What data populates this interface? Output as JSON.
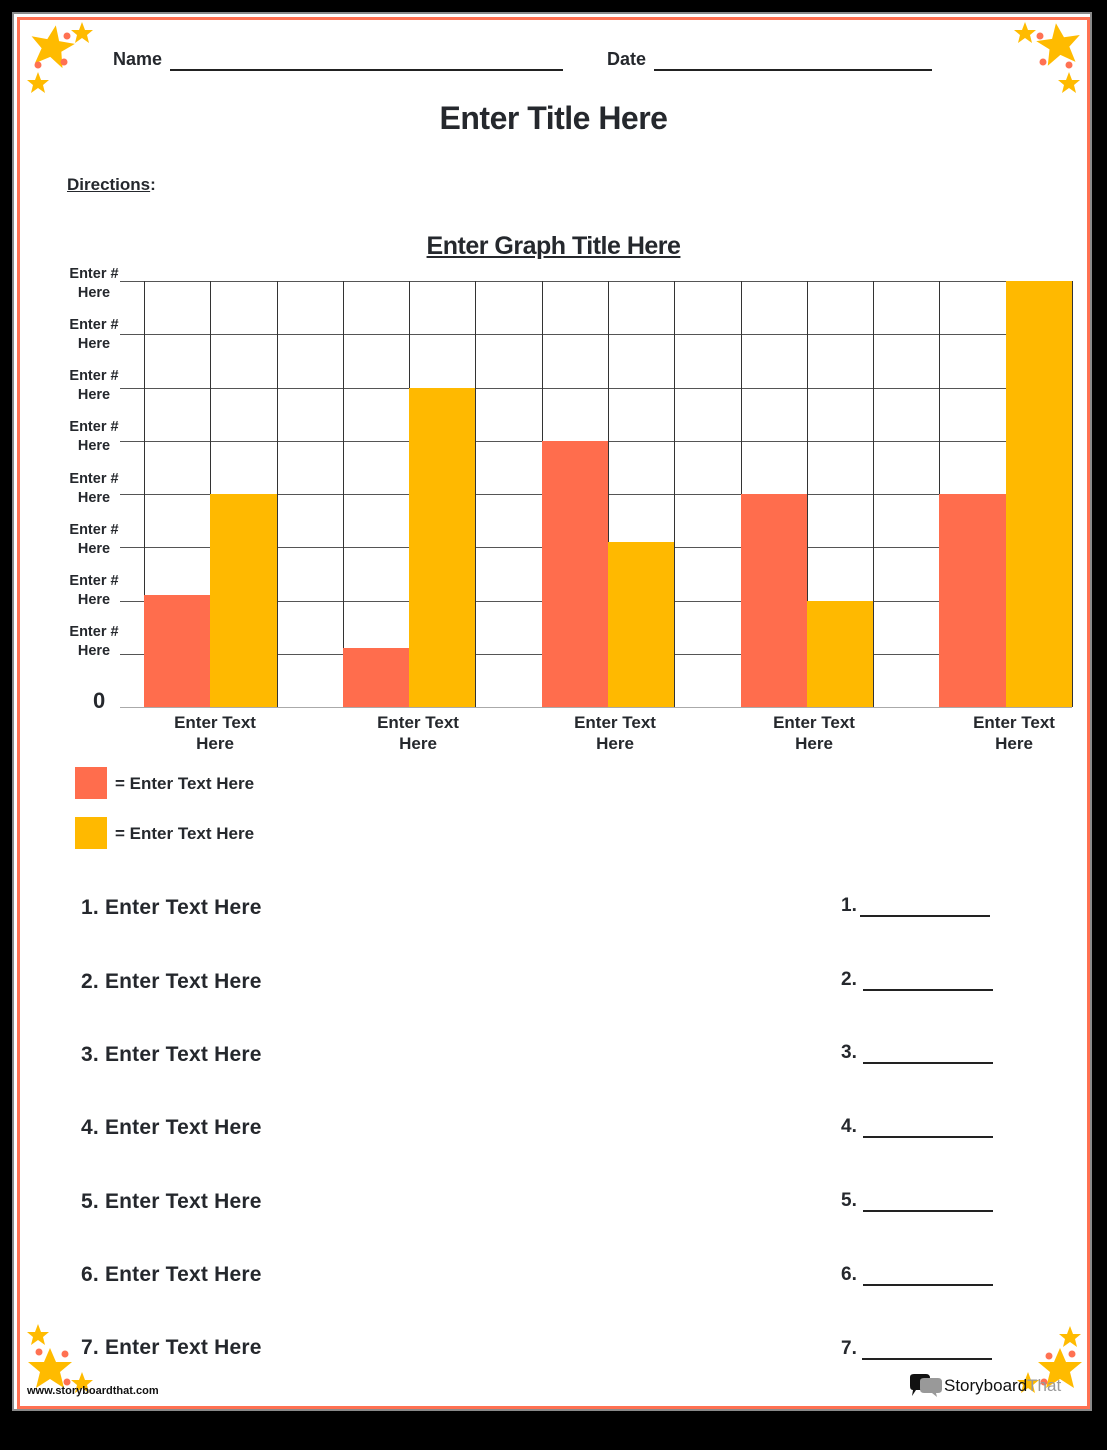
{
  "header": {
    "name_label": "Name",
    "date_label": "Date"
  },
  "title": "Enter Title Here",
  "directions_label": "Directions",
  "directions_colon": ":",
  "graph": {
    "title": "Enter Graph Title Here",
    "y_tick_labels": [
      {
        "line1": "Enter #",
        "line2": "Here"
      },
      {
        "line1": "Enter #",
        "line2": "Here"
      },
      {
        "line1": "Enter #",
        "line2": "Here"
      },
      {
        "line1": "Enter #",
        "line2": "Here"
      },
      {
        "line1": "Enter #",
        "line2": "Here"
      },
      {
        "line1": "Enter #",
        "line2": "Here"
      },
      {
        "line1": "Enter #",
        "line2": "Here"
      },
      {
        "line1": "Enter #",
        "line2": "Here"
      }
    ],
    "zero_label": "0",
    "x_labels": [
      {
        "line1": "Enter Text",
        "line2": "Here"
      },
      {
        "line1": "Enter Text",
        "line2": "Here"
      },
      {
        "line1": "Enter Text",
        "line2": "Here"
      },
      {
        "line1": "Enter Text",
        "line2": "Here"
      },
      {
        "line1": "Enter Text",
        "line2": "Here"
      }
    ],
    "legend": [
      {
        "color": "#ff6d4d",
        "label": "= Enter Text Here"
      },
      {
        "color": "#ffb900",
        "label": "= Enter Text Here"
      }
    ]
  },
  "chart_data": {
    "type": "bar",
    "title": "Enter Graph Title Here",
    "categories": [
      "Enter Text Here",
      "Enter Text Here",
      "Enter Text Here",
      "Enter Text Here",
      "Enter Text Here"
    ],
    "series": [
      {
        "name": "= Enter Text Here (orange)",
        "color": "#ff6d4d",
        "values": [
          2.1,
          1.1,
          5.0,
          4.0,
          4.0
        ]
      },
      {
        "name": "= Enter Text Here (yellow)",
        "color": "#ffb900",
        "values": [
          4.0,
          6.0,
          3.1,
          2.0,
          8.0
        ]
      }
    ],
    "xlabel": "",
    "ylabel": "",
    "y_tick_labels": [
      "0",
      "Enter # Here",
      "Enter # Here",
      "Enter # Here",
      "Enter # Here",
      "Enter # Here",
      "Enter # Here",
      "Enter # Here",
      "Enter # Here"
    ],
    "ylim": [
      0,
      8
    ],
    "grid": true,
    "legend_position": "bottom-left"
  },
  "questions": [
    {
      "text": "1. Enter Text Here",
      "answer_num": "1."
    },
    {
      "text": "2. Enter Text Here",
      "answer_num": "2."
    },
    {
      "text": "3. Enter Text Here",
      "answer_num": "3."
    },
    {
      "text": "4. Enter Text Here",
      "answer_num": "4."
    },
    {
      "text": "5. Enter Text Here",
      "answer_num": "5."
    },
    {
      "text": "6. Enter Text Here",
      "answer_num": "6."
    },
    {
      "text": "7. Enter Text Here",
      "answer_num": "7."
    }
  ],
  "footer": {
    "url": "www.storyboardthat.com",
    "logo_part1": "Storyboard",
    "logo_part2": "That"
  },
  "colors": {
    "border": "#ff7152",
    "orange_bar": "#ff6d4d",
    "yellow_bar": "#ffb900",
    "star": "#ffbb00",
    "dot": "#ff7152"
  }
}
